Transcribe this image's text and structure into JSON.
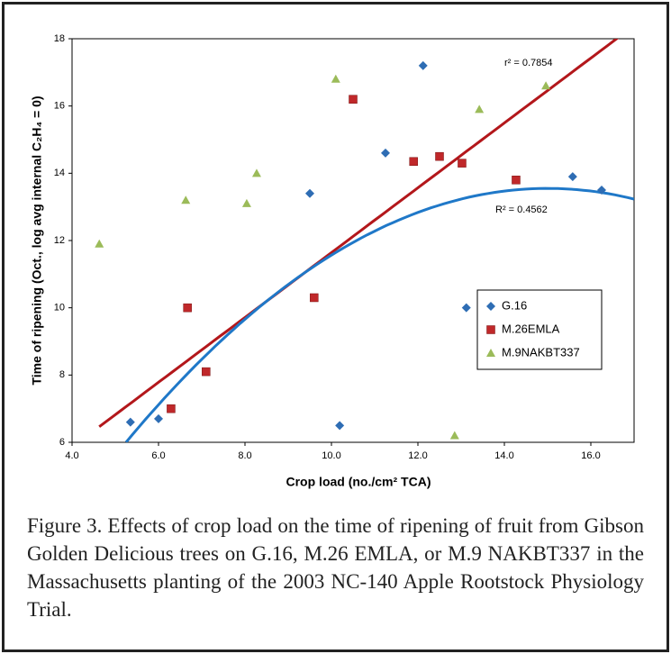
{
  "chart_data": {
    "type": "scatter",
    "xlabel": "Crop load (no./cm² TCA)",
    "ylabel": "Time of ripening (Oct., log avg internal C₂H₄ = 0)",
    "xlim": [
      4,
      17
    ],
    "ylim": [
      6,
      18
    ],
    "xticks": [
      {
        "value": 4,
        "label": "4.0"
      },
      {
        "value": 6,
        "label": "6.0"
      },
      {
        "value": 8,
        "label": "8.0"
      },
      {
        "value": 10,
        "label": "10.0"
      },
      {
        "value": 12,
        "label": "12.0"
      },
      {
        "value": 14,
        "label": "14.0"
      },
      {
        "value": 16,
        "label": "16.0"
      }
    ],
    "yticks": [
      6,
      8,
      10,
      12,
      14,
      16,
      18
    ],
    "series": [
      {
        "name": "G.16",
        "color": "#2e6db4",
        "marker": "diamond",
        "x": [
          5.35,
          6.0,
          9.5,
          10.19,
          11.25,
          12.12,
          13.12,
          15.58,
          16.25
        ],
        "values": [
          6.6,
          6.7,
          13.4,
          6.5,
          14.6,
          17.2,
          10.0,
          13.9,
          13.5
        ]
      },
      {
        "name": "M.26EMLA",
        "color": "#c0282a",
        "marker": "square",
        "x": [
          6.29,
          6.67,
          7.1,
          9.6,
          10.5,
          11.9,
          12.5,
          13.02,
          14.27
        ],
        "values": [
          7.0,
          10.0,
          8.1,
          10.3,
          16.2,
          14.35,
          14.5,
          14.3,
          13.8
        ]
      },
      {
        "name": "M.9NAKBT337",
        "color": "#9bbb59",
        "marker": "triangle",
        "x": [
          4.63,
          6.63,
          8.04,
          8.27,
          10.1,
          12.85,
          13.42,
          14.96
        ],
        "values": [
          11.9,
          13.2,
          13.1,
          14.0,
          16.8,
          6.2,
          15.9,
          16.6
        ]
      }
    ],
    "trendlines": [
      {
        "fit": "linear",
        "color": "#b3171b",
        "coefficients": [
          2.0,
          0.964
        ],
        "x_range": [
          4.63,
          17
        ],
        "label": "r² = 0.7854"
      },
      {
        "fit": "quadratic",
        "color": "#1f78c8",
        "coefficients": [
          -4.315,
          2.382,
          -0.0794
        ],
        "x_range": [
          5.25,
          17
        ],
        "label": "R² = 0.4562"
      }
    ]
  },
  "caption": "Figure 3. Effects of crop load on the time of ripening of fruit from Gibson Golden Delicious trees on G.16, M.26 EMLA, or M.9 NAKBT337 in the Massachusetts planting of the 2003 NC-140 Apple Rootstock Physiology Trial."
}
